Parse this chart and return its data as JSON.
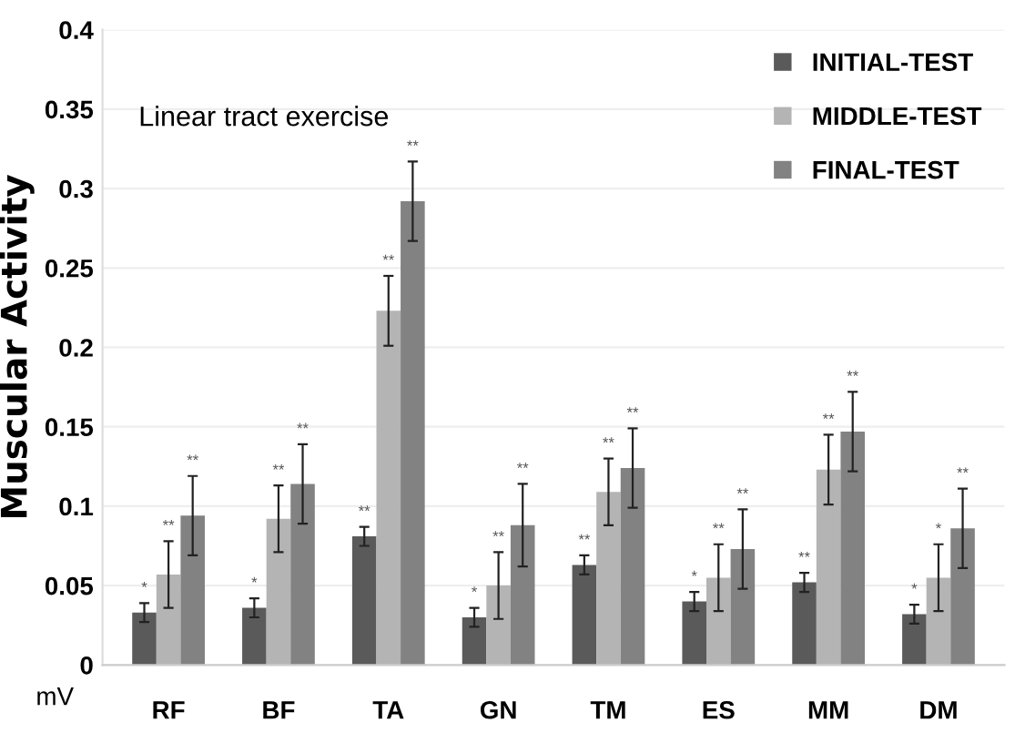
{
  "chart_data": {
    "type": "bar",
    "ylabel": "Muscular Activity",
    "categories": [
      "RF",
      "BF",
      "TA",
      "GN",
      "TM",
      "ES",
      "MM",
      "DM"
    ],
    "series": [
      {
        "name": "INITIAL-TEST",
        "color": "#5a5a5a",
        "values": [
          0.033,
          0.036,
          0.081,
          0.03,
          0.063,
          0.04,
          0.052,
          0.032
        ],
        "errors": [
          0.006,
          0.006,
          0.006,
          0.006,
          0.006,
          0.006,
          0.006,
          0.006
        ]
      },
      {
        "name": "MIDDLE-TEST",
        "color": "#b4b4b4",
        "values": [
          0.057,
          0.092,
          0.223,
          0.05,
          0.109,
          0.055,
          0.123,
          0.055
        ],
        "errors": [
          0.021,
          0.021,
          0.022,
          0.021,
          0.021,
          0.021,
          0.022,
          0.021
        ]
      },
      {
        "name": "FINAL-TEST",
        "color": "#828282",
        "values": [
          0.094,
          0.114,
          0.292,
          0.088,
          0.124,
          0.073,
          0.147,
          0.086
        ],
        "errors": [
          0.025,
          0.025,
          0.025,
          0.026,
          0.025,
          0.025,
          0.025,
          0.025
        ]
      }
    ],
    "ylim": [
      0,
      0.4
    ],
    "yticks": [
      0,
      0.05,
      0.1,
      0.15,
      0.2,
      0.25,
      0.3,
      0.35,
      0.4
    ],
    "grid": "y",
    "legend": "top right",
    "annotations": [
      "Linear tract exercise",
      "mV",
      "*",
      "**",
      "**",
      "*",
      "**",
      "**",
      "**",
      "**",
      "**",
      "*",
      "**",
      "**",
      "**",
      "**",
      "**",
      "*",
      "**",
      "**",
      "**",
      "**",
      "**",
      "*",
      "*",
      "**"
    ]
  }
}
